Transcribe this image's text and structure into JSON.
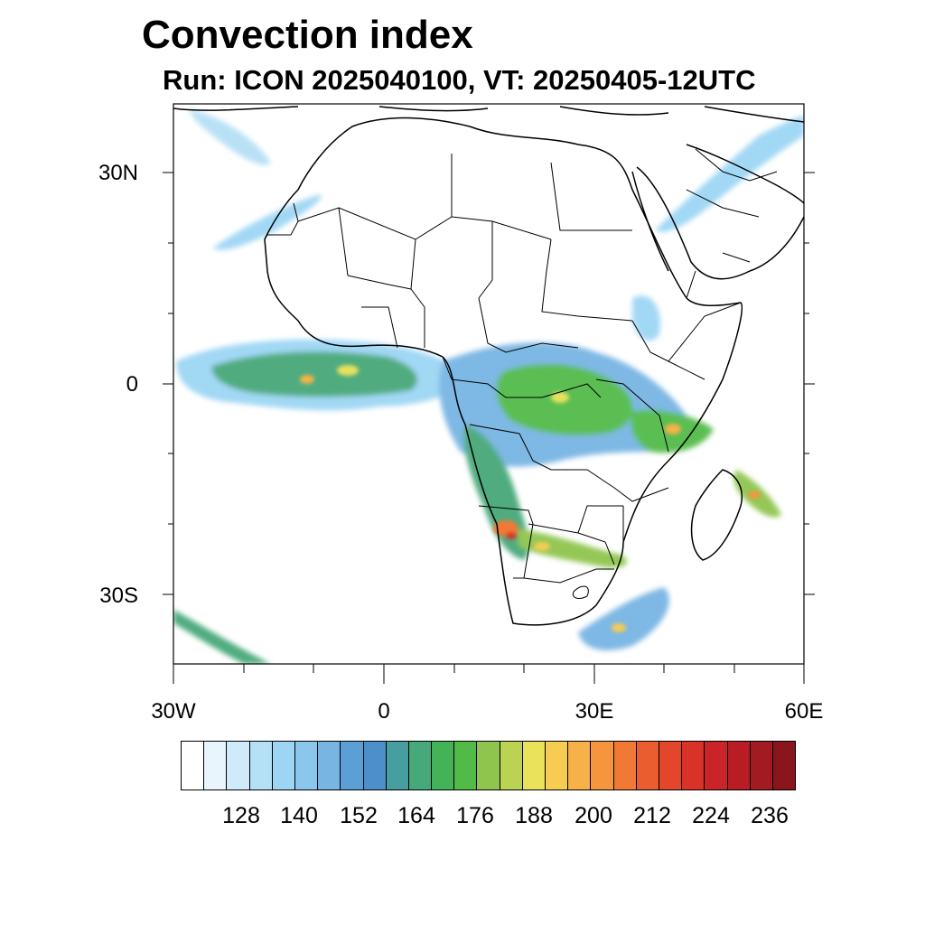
{
  "title": "Convection index",
  "subtitle": "Run: ICON 2025040100,  VT: 20250405-12UTC",
  "map": {
    "region": "Africa",
    "projection": "lat-lon",
    "lon_range": [
      -30,
      60
    ],
    "lat_range": [
      -40,
      40
    ],
    "lat_labels": [
      "30N",
      "0",
      "30S"
    ],
    "lon_labels": [
      "30W",
      "0",
      "30E",
      "60E"
    ]
  },
  "colorbar": {
    "labels": [
      "128",
      "140",
      "152",
      "164",
      "176",
      "188",
      "200",
      "212",
      "224",
      "236"
    ],
    "colors": [
      "#ffffff",
      "#e8f5fc",
      "#cfeaf8",
      "#b6e0f6",
      "#9dd6f4",
      "#8bc7ec",
      "#78b5e3",
      "#5c9ed6",
      "#4d8fc8",
      "#469e9f",
      "#47a879",
      "#44b358",
      "#52bb48",
      "#8fc54e",
      "#bcd252",
      "#e9e25a",
      "#f6cc52",
      "#f6b248",
      "#f5953e",
      "#f17936",
      "#ea5d2f",
      "#e2462b",
      "#d93229",
      "#c92427",
      "#b81d25",
      "#a21a22",
      "#8a161d"
    ]
  }
}
